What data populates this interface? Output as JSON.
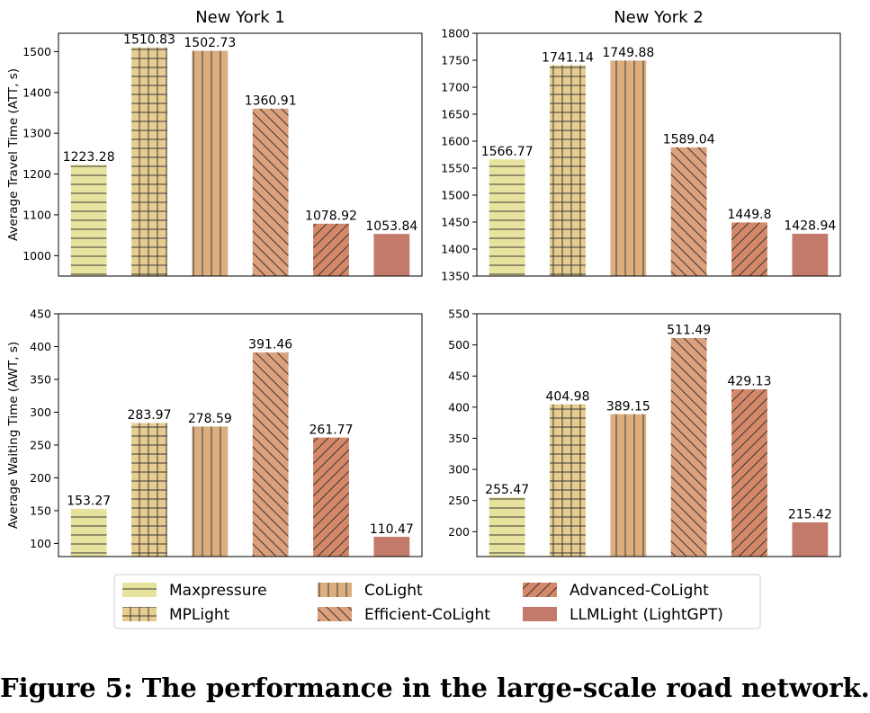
{
  "caption": "Figure 5: The performance in the large-scale road network.",
  "legend": {
    "items": [
      {
        "name": "Maxpressure",
        "color": "#e8e29f",
        "pattern": "horizontal"
      },
      {
        "name": "MPLight",
        "color": "#e6cc8f",
        "pattern": "grid"
      },
      {
        "name": "CoLight",
        "color": "#dcae7e",
        "pattern": "vertical"
      },
      {
        "name": "Efficient-CoLight",
        "color": "#dca07c",
        "pattern": "backslash"
      },
      {
        "name": "Advanced-CoLight",
        "color": "#d48868",
        "pattern": "slash"
      },
      {
        "name": "LLMLight (LightGPT)",
        "color": "#c47a6a",
        "pattern": "none"
      }
    ]
  },
  "chart_data": [
    {
      "type": "bar",
      "title": "New York 1",
      "ylabel": "Average Travel Time (ATT, s)",
      "xlabel": "",
      "categories": [
        "Maxpressure",
        "MPLight",
        "CoLight",
        "Efficient-CoLight",
        "Advanced-CoLight",
        "LLMLight (LightGPT)"
      ],
      "values": [
        1223.28,
        1510.83,
        1502.73,
        1360.91,
        1078.92,
        1053.84
      ],
      "labels": [
        "1223.28",
        "1510.83",
        "1502.73",
        "1360.91",
        "1078.92",
        "1053.84"
      ],
      "ylim": [
        950,
        1545
      ],
      "yticks": [
        1000,
        1100,
        1200,
        1300,
        1400,
        1500
      ]
    },
    {
      "type": "bar",
      "title": "New York 2",
      "ylabel": "",
      "xlabel": "",
      "categories": [
        "Maxpressure",
        "MPLight",
        "CoLight",
        "Efficient-CoLight",
        "Advanced-CoLight",
        "LLMLight (LightGPT)"
      ],
      "values": [
        1566.77,
        1741.14,
        1749.88,
        1589.04,
        1449.8,
        1428.94
      ],
      "labels": [
        "1566.77",
        "1741.14",
        "1749.88",
        "1589.04",
        "1449.8",
        "1428.94"
      ],
      "ylim": [
        1350,
        1800
      ],
      "yticks": [
        1350,
        1400,
        1450,
        1500,
        1550,
        1600,
        1650,
        1700,
        1750,
        1800
      ]
    },
    {
      "type": "bar",
      "title": "",
      "ylabel": "Average Waiting Time (AWT, s)",
      "xlabel": "",
      "categories": [
        "Maxpressure",
        "MPLight",
        "CoLight",
        "Efficient-CoLight",
        "Advanced-CoLight",
        "LLMLight (LightGPT)"
      ],
      "values": [
        153.27,
        283.97,
        278.59,
        391.46,
        261.77,
        110.47
      ],
      "labels": [
        "153.27",
        "283.97",
        "278.59",
        "391.46",
        "261.77",
        "110.47"
      ],
      "ylim": [
        80,
        450
      ],
      "yticks": [
        100,
        150,
        200,
        250,
        300,
        350,
        400,
        450
      ]
    },
    {
      "type": "bar",
      "title": "",
      "ylabel": "",
      "xlabel": "",
      "categories": [
        "Maxpressure",
        "MPLight",
        "CoLight",
        "Efficient-CoLight",
        "Advanced-CoLight",
        "LLMLight (LightGPT)"
      ],
      "values": [
        255.47,
        404.98,
        389.15,
        511.49,
        429.13,
        215.42
      ],
      "labels": [
        "255.47",
        "404.98",
        "389.15",
        "511.49",
        "429.13",
        "215.42"
      ],
      "ylim": [
        160,
        550
      ],
      "yticks": [
        200,
        250,
        300,
        350,
        400,
        450,
        500,
        550
      ]
    }
  ]
}
